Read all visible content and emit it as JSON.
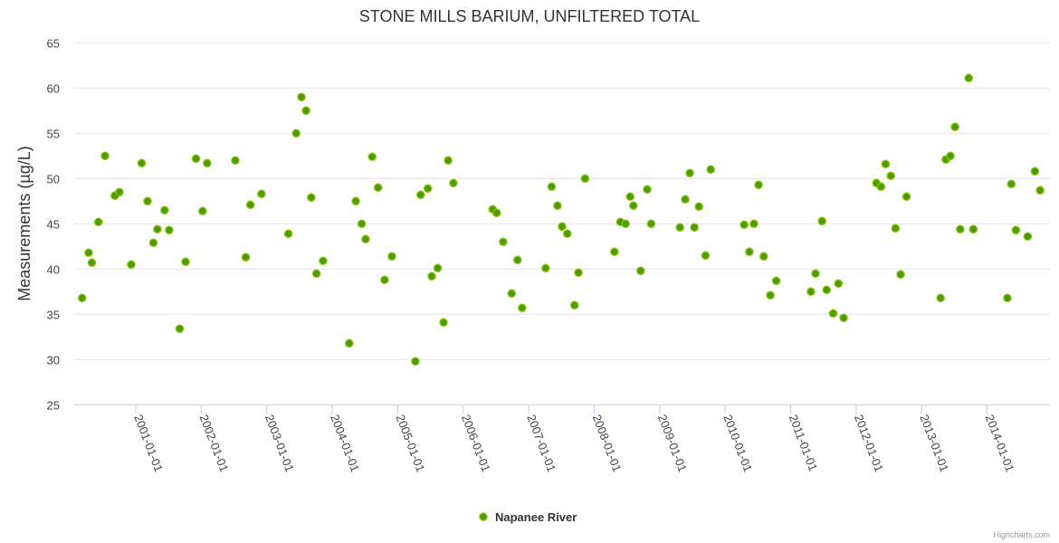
{
  "chart_data": {
    "type": "scatter",
    "title": "STONE MILLS BARIUM, UNFILTERED TOTAL",
    "xlabel": "",
    "ylabel": "Measurements (µg/L)",
    "x_units": "decimal year",
    "xlim": [
      2000.06,
      2014.96
    ],
    "ylim": [
      25,
      65
    ],
    "yticks": [
      25,
      30,
      35,
      40,
      45,
      50,
      55,
      60,
      65
    ],
    "xticks": [
      {
        "value": 2001,
        "label": "2001-01-01"
      },
      {
        "value": 2002,
        "label": "2002-01-01"
      },
      {
        "value": 2003,
        "label": "2003-01-01"
      },
      {
        "value": 2004,
        "label": "2004-01-01"
      },
      {
        "value": 2005,
        "label": "2005-01-01"
      },
      {
        "value": 2006,
        "label": "2006-01-01"
      },
      {
        "value": 2007,
        "label": "2007-01-01"
      },
      {
        "value": 2008,
        "label": "2008-01-01"
      },
      {
        "value": 2009,
        "label": "2009-01-01"
      },
      {
        "value": 2010,
        "label": "2010-01-01"
      },
      {
        "value": 2011,
        "label": "2011-01-01"
      },
      {
        "value": 2012,
        "label": "2012-01-01"
      },
      {
        "value": 2013,
        "label": "2013-01-01"
      },
      {
        "value": 2014,
        "label": "2014-01-01"
      }
    ],
    "grid": true,
    "legend_position": "bottom-center",
    "series": [
      {
        "name": "Napanee River",
        "color": "#4c9a00",
        "points": [
          [
            2000.18,
            36.8
          ],
          [
            2000.28,
            41.8
          ],
          [
            2000.33,
            40.7
          ],
          [
            2000.43,
            45.2
          ],
          [
            2000.53,
            52.5
          ],
          [
            2000.68,
            48.1
          ],
          [
            2000.75,
            48.5
          ],
          [
            2000.93,
            40.5
          ],
          [
            2001.09,
            51.7
          ],
          [
            2001.18,
            47.5
          ],
          [
            2001.27,
            42.9
          ],
          [
            2001.33,
            44.4
          ],
          [
            2001.44,
            46.5
          ],
          [
            2001.51,
            44.3
          ],
          [
            2001.67,
            33.4
          ],
          [
            2001.76,
            40.8
          ],
          [
            2001.92,
            52.2
          ],
          [
            2002.02,
            46.4
          ],
          [
            2002.09,
            51.7
          ],
          [
            2002.52,
            52.0
          ],
          [
            2002.68,
            41.3
          ],
          [
            2002.75,
            47.1
          ],
          [
            2002.92,
            48.3
          ],
          [
            2003.33,
            43.9
          ],
          [
            2003.45,
            55.0
          ],
          [
            2003.53,
            59.0
          ],
          [
            2003.6,
            57.5
          ],
          [
            2003.68,
            47.9
          ],
          [
            2003.76,
            39.5
          ],
          [
            2003.86,
            40.9
          ],
          [
            2004.26,
            31.8
          ],
          [
            2004.36,
            47.5
          ],
          [
            2004.45,
            45.0
          ],
          [
            2004.51,
            43.3
          ],
          [
            2004.61,
            52.4
          ],
          [
            2004.7,
            49.0
          ],
          [
            2004.8,
            38.8
          ],
          [
            2004.91,
            41.4
          ],
          [
            2005.27,
            29.8
          ],
          [
            2005.35,
            48.2
          ],
          [
            2005.46,
            48.9
          ],
          [
            2005.52,
            39.2
          ],
          [
            2005.61,
            40.1
          ],
          [
            2005.7,
            34.1
          ],
          [
            2005.77,
            52.0
          ],
          [
            2005.85,
            49.5
          ],
          [
            2006.45,
            46.6
          ],
          [
            2006.51,
            46.2
          ],
          [
            2006.61,
            43.0
          ],
          [
            2006.74,
            37.3
          ],
          [
            2006.83,
            41.0
          ],
          [
            2006.9,
            35.7
          ],
          [
            2007.26,
            40.1
          ],
          [
            2007.35,
            49.1
          ],
          [
            2007.44,
            47.0
          ],
          [
            2007.51,
            44.7
          ],
          [
            2007.59,
            43.9
          ],
          [
            2007.7,
            36.0
          ],
          [
            2007.76,
            39.6
          ],
          [
            2007.86,
            50.0
          ],
          [
            2008.31,
            41.9
          ],
          [
            2008.4,
            45.2
          ],
          [
            2008.48,
            45.0
          ],
          [
            2008.55,
            48.0
          ],
          [
            2008.6,
            47.0
          ],
          [
            2008.71,
            39.8
          ],
          [
            2008.81,
            48.8
          ],
          [
            2008.87,
            45.0
          ],
          [
            2009.31,
            44.6
          ],
          [
            2009.39,
            47.7
          ],
          [
            2009.46,
            50.6
          ],
          [
            2009.53,
            44.6
          ],
          [
            2009.6,
            46.9
          ],
          [
            2009.7,
            41.5
          ],
          [
            2009.78,
            51.0
          ],
          [
            2010.29,
            44.9
          ],
          [
            2010.37,
            41.9
          ],
          [
            2010.44,
            45.0
          ],
          [
            2010.51,
            49.3
          ],
          [
            2010.59,
            41.4
          ],
          [
            2010.69,
            37.1
          ],
          [
            2010.78,
            38.7
          ],
          [
            2011.31,
            37.5
          ],
          [
            2011.38,
            39.5
          ],
          [
            2011.48,
            45.3
          ],
          [
            2011.55,
            37.7
          ],
          [
            2011.65,
            35.1
          ],
          [
            2011.73,
            38.4
          ],
          [
            2011.81,
            34.6
          ],
          [
            2012.31,
            49.5
          ],
          [
            2012.38,
            49.1
          ],
          [
            2012.45,
            51.6
          ],
          [
            2012.53,
            50.3
          ],
          [
            2012.6,
            44.5
          ],
          [
            2012.68,
            39.4
          ],
          [
            2012.77,
            48.0
          ],
          [
            2013.29,
            36.8
          ],
          [
            2013.37,
            52.1
          ],
          [
            2013.44,
            52.5
          ],
          [
            2013.51,
            55.7
          ],
          [
            2013.59,
            44.4
          ],
          [
            2013.72,
            61.1
          ],
          [
            2013.79,
            44.4
          ],
          [
            2014.31,
            36.8
          ],
          [
            2014.37,
            49.4
          ],
          [
            2014.44,
            44.3
          ],
          [
            2014.62,
            43.6
          ],
          [
            2014.73,
            50.8
          ],
          [
            2014.81,
            48.7
          ]
        ]
      }
    ]
  },
  "credits": "Highcharts.com"
}
